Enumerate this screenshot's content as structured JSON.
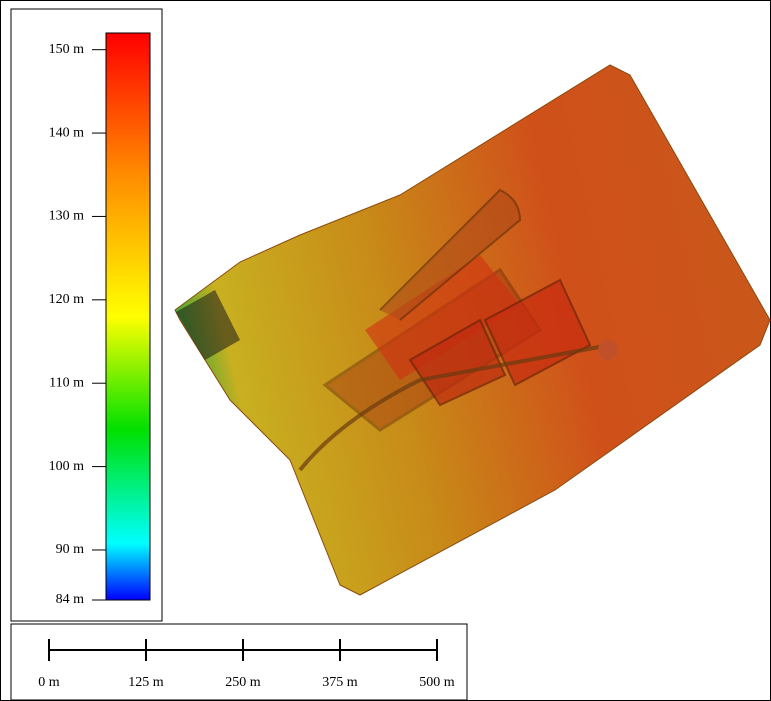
{
  "legend": {
    "range": [
      84,
      152
    ],
    "ticks": [
      {
        "value": 84,
        "label": "84 m"
      },
      {
        "value": 90,
        "label": "90 m"
      },
      {
        "value": 100,
        "label": "100 m"
      },
      {
        "value": 110,
        "label": "110 m"
      },
      {
        "value": 120,
        "label": "120 m"
      },
      {
        "value": 130,
        "label": "130 m"
      },
      {
        "value": 140,
        "label": "140 m"
      },
      {
        "value": 150,
        "label": "150 m"
      }
    ]
  },
  "scale_bar": {
    "range": [
      0,
      500
    ],
    "ticks": [
      {
        "value": 0,
        "label": "0 m"
      },
      {
        "value": 125,
        "label": "125 m"
      },
      {
        "value": 250,
        "label": "250 m"
      },
      {
        "value": 375,
        "label": "375 m"
      },
      {
        "value": 500,
        "label": "500 m"
      }
    ]
  }
}
